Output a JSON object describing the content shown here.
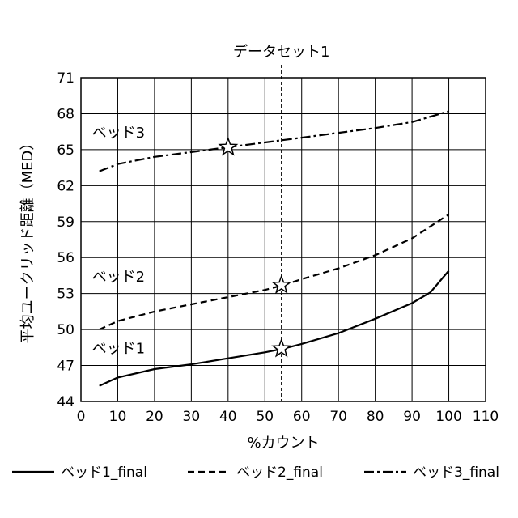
{
  "chart_data": {
    "type": "line",
    "xlabel": "%カウント",
    "ylabel": "平均ユークリッド距離（MED）",
    "xlim": [
      0,
      110
    ],
    "ylim": [
      44,
      71
    ],
    "xticks": [
      0,
      10,
      20,
      30,
      40,
      50,
      60,
      70,
      80,
      90,
      100,
      110
    ],
    "yticks": [
      44,
      47,
      50,
      53,
      56,
      59,
      62,
      65,
      68,
      71
    ],
    "grid": true,
    "legend_position": "bottom",
    "vline": {
      "x": 54.5,
      "label": "データセット1"
    },
    "series": [
      {
        "name": "ベッド1_final",
        "dash": "solid",
        "x": [
          5,
          10,
          20,
          30,
          40,
          50,
          55,
          60,
          70,
          80,
          90,
          95,
          100
        ],
        "y": [
          45.3,
          46.0,
          46.7,
          47.1,
          47.6,
          48.1,
          48.4,
          48.8,
          49.7,
          50.9,
          52.2,
          53.1,
          54.9
        ]
      },
      {
        "name": "ベッド2_final",
        "dash": "dashed",
        "x": [
          5,
          10,
          20,
          30,
          40,
          50,
          55,
          60,
          70,
          80,
          90,
          100
        ],
        "y": [
          50.0,
          50.7,
          51.5,
          52.1,
          52.7,
          53.3,
          53.7,
          54.2,
          55.1,
          56.2,
          57.6,
          59.6
        ]
      },
      {
        "name": "ベッド3_final",
        "dash": "dashdot",
        "x": [
          5,
          10,
          20,
          30,
          40,
          50,
          60,
          70,
          80,
          90,
          100
        ],
        "y": [
          63.2,
          63.8,
          64.4,
          64.8,
          65.2,
          65.6,
          66.0,
          66.4,
          66.8,
          67.3,
          68.2
        ]
      }
    ],
    "annotations": [
      {
        "text": "ベッド3",
        "x": 3,
        "y": 66.0
      },
      {
        "text": "ベッド2",
        "x": 3,
        "y": 54.0
      },
      {
        "text": "ベッド1",
        "x": 3,
        "y": 48.0
      }
    ],
    "markers": [
      {
        "shape": "star",
        "x": 40,
        "y": 65.2
      },
      {
        "shape": "star",
        "x": 54.5,
        "y": 53.7
      },
      {
        "shape": "star",
        "x": 54.5,
        "y": 48.4
      }
    ]
  }
}
